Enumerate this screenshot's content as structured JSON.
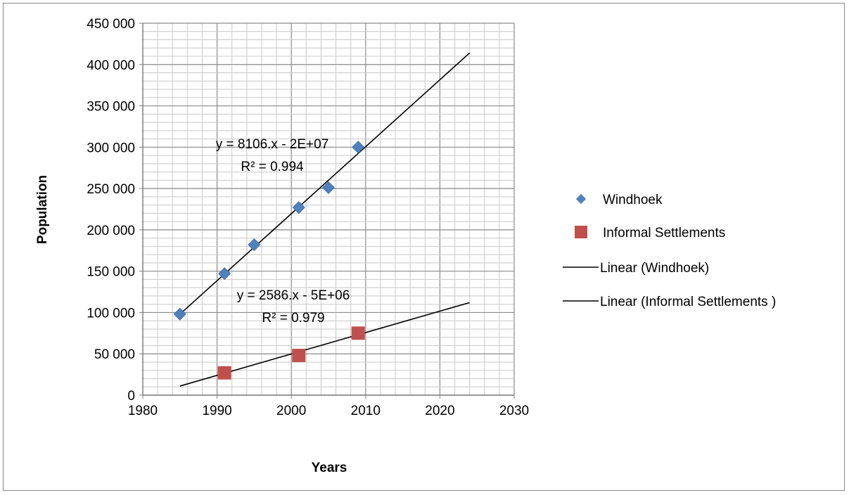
{
  "chart_data": {
    "type": "scatter",
    "xlabel": "Years",
    "ylabel": "Population",
    "xlim": [
      1980,
      2030
    ],
    "ylim": [
      0,
      450000
    ],
    "x_ticks": [
      1980,
      1990,
      2000,
      2010,
      2020,
      2030
    ],
    "x_tick_labels": [
      "1980",
      "1990",
      "2000",
      "2010",
      "2020",
      "2030"
    ],
    "y_ticks": [
      0,
      50000,
      100000,
      150000,
      200000,
      250000,
      300000,
      350000,
      400000,
      450000
    ],
    "y_tick_labels": [
      "0",
      "50 000",
      "100 000",
      "150 000",
      "200 000",
      "250 000",
      "300 000",
      "350 000",
      "400 000",
      "450 000"
    ],
    "grid": true,
    "legend_position": "right",
    "series": [
      {
        "name": "Windhoek",
        "marker": "diamond",
        "color": "#4F81BD",
        "points": [
          {
            "x": 1985,
            "y": 98000
          },
          {
            "x": 1991,
            "y": 147000
          },
          {
            "x": 1995,
            "y": 182000
          },
          {
            "x": 2001,
            "y": 227000
          },
          {
            "x": 2005,
            "y": 251000
          },
          {
            "x": 2009,
            "y": 300000
          }
        ]
      },
      {
        "name": "Informal Settlements",
        "marker": "square",
        "color": "#C0504D",
        "points": [
          {
            "x": 1991,
            "y": 27000
          },
          {
            "x": 2001,
            "y": 48000
          },
          {
            "x": 2009,
            "y": 75000
          }
        ]
      }
    ],
    "trendlines": [
      {
        "name": "Linear (Windhoek)",
        "color": "#000000",
        "x_range": [
          1985,
          2024
        ],
        "y_range": [
          98000,
          414000
        ],
        "equation": "y = 8106.x - 2E+07",
        "r_squared": "R² = 0.994"
      },
      {
        "name": "Linear (Informal Settlements )",
        "color": "#000000",
        "x_range": [
          1985,
          2024
        ],
        "y_range": [
          11000,
          112000
        ],
        "equation": "y = 2586.x - 5E+06",
        "r_squared": "R² = 0.979"
      }
    ]
  }
}
